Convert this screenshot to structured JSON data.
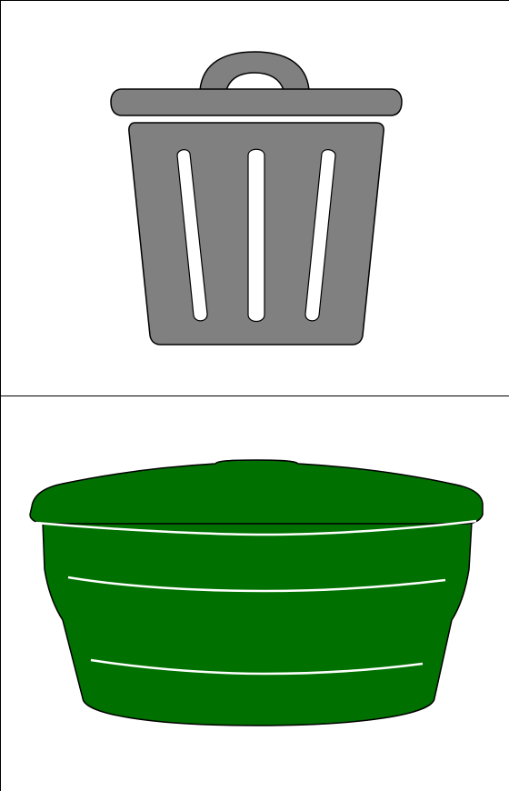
{
  "panels": [
    {
      "icon": "trash-can-icon",
      "color": "#808080"
    },
    {
      "icon": "water-tank-icon",
      "color": "#007000"
    }
  ],
  "colors": {
    "outline": "#000000",
    "background": "#ffffff"
  }
}
